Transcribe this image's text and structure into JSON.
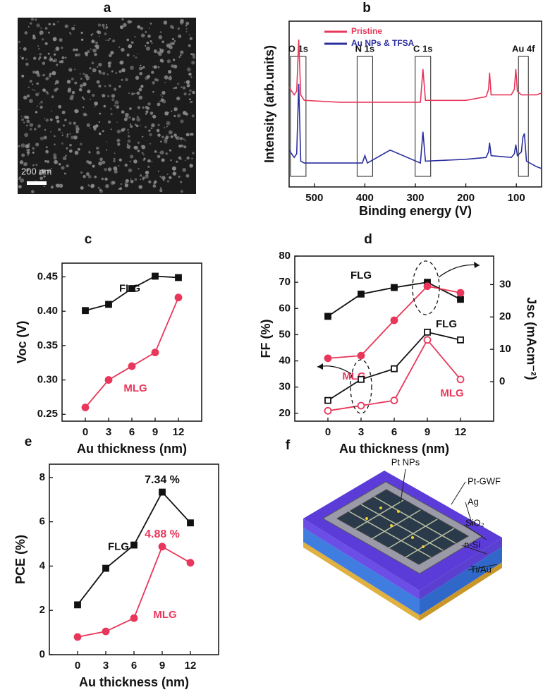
{
  "panel_labels": [
    "a",
    "b",
    "c",
    "d",
    "e",
    "f"
  ],
  "sem_image": {
    "scale_bar": "200 nm"
  },
  "chart_data": [
    {
      "type": "line",
      "x_label": "Binding energy (V)",
      "y_label": "Intensity (arb.units)",
      "x": [
        550,
        540,
        535,
        531,
        527,
        520,
        450,
        405,
        400,
        395,
        350,
        290,
        285,
        280,
        200,
        160,
        155,
        153,
        150,
        110,
        104,
        101,
        98,
        90,
        87,
        84,
        80,
        60,
        50
      ],
      "xlim": [
        550,
        50
      ],
      "xticks": [
        500,
        400,
        300,
        200,
        100
      ],
      "ylim": [
        1,
        10
      ],
      "legend": "top",
      "series": [
        {
          "name": "Pristine",
          "color": "#e8375a",
          "values": [
            6.4,
            6.0,
            6.2,
            9.0,
            6.0,
            5.7,
            5.6,
            5.6,
            5.6,
            5.6,
            5.6,
            5.6,
            7.4,
            5.7,
            5.7,
            5.9,
            6.3,
            7.2,
            6.0,
            6.0,
            6.3,
            7.4,
            6.2,
            6.0,
            6.0,
            6.0,
            6.0,
            6.0,
            6.1
          ]
        },
        {
          "name": "Au NPs & TFSA",
          "color": "#2b2f9e",
          "values": [
            3.0,
            2.6,
            2.8,
            6.6,
            2.4,
            2.3,
            2.3,
            2.3,
            2.7,
            2.3,
            3.0,
            2.3,
            4.0,
            2.4,
            2.5,
            2.6,
            2.9,
            3.4,
            2.7,
            2.6,
            2.8,
            3.3,
            2.7,
            2.9,
            3.7,
            3.9,
            2.4,
            2.1,
            2.0
          ]
        }
      ],
      "annotations": [
        {
          "text": "O 1s",
          "x": 532
        },
        {
          "text": "N 1s",
          "x": 400
        },
        {
          "text": "C 1s",
          "x": 285
        },
        {
          "text": "Au 4f",
          "x": 86
        }
      ]
    },
    {
      "type": "line",
      "x_label": "Au thickness (nm)",
      "y_label": "Voc (V)",
      "x": [
        0,
        3,
        6,
        9,
        12
      ],
      "xlim": [
        -3,
        15
      ],
      "xticks": [
        0,
        3,
        6,
        9,
        12
      ],
      "ylim": [
        0.24,
        0.47
      ],
      "yticks": [
        0.25,
        {
          "value": 0.3,
          "label": "0.30"
        },
        0.35,
        {
          "value": 0.4,
          "label": "0.40"
        },
        0.45
      ],
      "series": [
        {
          "name": "FLG",
          "color": "#111111",
          "marker": "square",
          "filled": true,
          "values": [
            0.401,
            0.41,
            0.433,
            0.451,
            0.449
          ]
        },
        {
          "name": "MLG",
          "color": "#e8375a",
          "marker": "circle",
          "filled": true,
          "values": [
            0.26,
            0.3,
            0.32,
            0.34,
            0.42
          ]
        }
      ]
    },
    {
      "type": "line",
      "x_label": "Au thickness (nm)",
      "y_label": "FF (%)",
      "y2_label": "Jsc (mAcm⁻²)",
      "x": [
        0,
        3,
        6,
        9,
        12
      ],
      "xlim": [
        -3,
        15
      ],
      "xticks": [
        0,
        3,
        6,
        9,
        12
      ],
      "ylim": [
        17,
        80
      ],
      "yticks": [
        20,
        30,
        40,
        50,
        60,
        70,
        80
      ],
      "y2lim": [
        -12.2,
        38.8
      ],
      "y2ticks": [
        0,
        10,
        20,
        30
      ],
      "series": [
        {
          "name": "FLG",
          "color": "#111111",
          "marker": "square",
          "filled": true,
          "axis": "y",
          "values": [
            57,
            65.5,
            68,
            70,
            63.5
          ]
        },
        {
          "name": "MLG",
          "color": "#e8375a",
          "marker": "circle",
          "filled": true,
          "axis": "y",
          "values": [
            41,
            42,
            55.5,
            68.5,
            66
          ]
        },
        {
          "name": "FLG",
          "color": "#111111",
          "marker": "square",
          "filled": false,
          "axis": "y2",
          "values": [
            -5.8,
            0.7,
            4.0,
            15.3,
            12.9
          ]
        },
        {
          "name": "MLG",
          "color": "#e8375a",
          "marker": "circle",
          "filled": false,
          "axis": "y2",
          "values": [
            -9.0,
            -7.4,
            -5.8,
            12.9,
            0.7
          ]
        }
      ]
    },
    {
      "type": "line",
      "x_label": "Au thickness (nm)",
      "y_label": "PCE (%)",
      "x": [
        0,
        3,
        6,
        9,
        12
      ],
      "xlim": [
        -3,
        15
      ],
      "xticks": [
        0,
        3,
        6,
        9,
        12
      ],
      "ylim": [
        0,
        8.6
      ],
      "yticks": [
        0,
        2,
        4,
        6,
        8
      ],
      "series": [
        {
          "name": "FLG",
          "color": "#111111",
          "marker": "square",
          "filled": true,
          "values": [
            2.25,
            3.9,
            4.95,
            7.34,
            5.95
          ],
          "value_labels": [
            null,
            null,
            null,
            "7.34 %",
            null
          ]
        },
        {
          "name": "MLG",
          "color": "#e8375a",
          "marker": "circle",
          "filled": true,
          "values": [
            0.8,
            1.05,
            1.65,
            4.88,
            4.15
          ],
          "value_labels": [
            null,
            null,
            null,
            "4.88 %",
            null
          ]
        }
      ]
    }
  ],
  "device_diagram": {
    "labels": [
      "Pt NPs",
      "Pt-GWF",
      "Ag",
      "SiO₂",
      "n-Si",
      "Ti/Au"
    ]
  }
}
